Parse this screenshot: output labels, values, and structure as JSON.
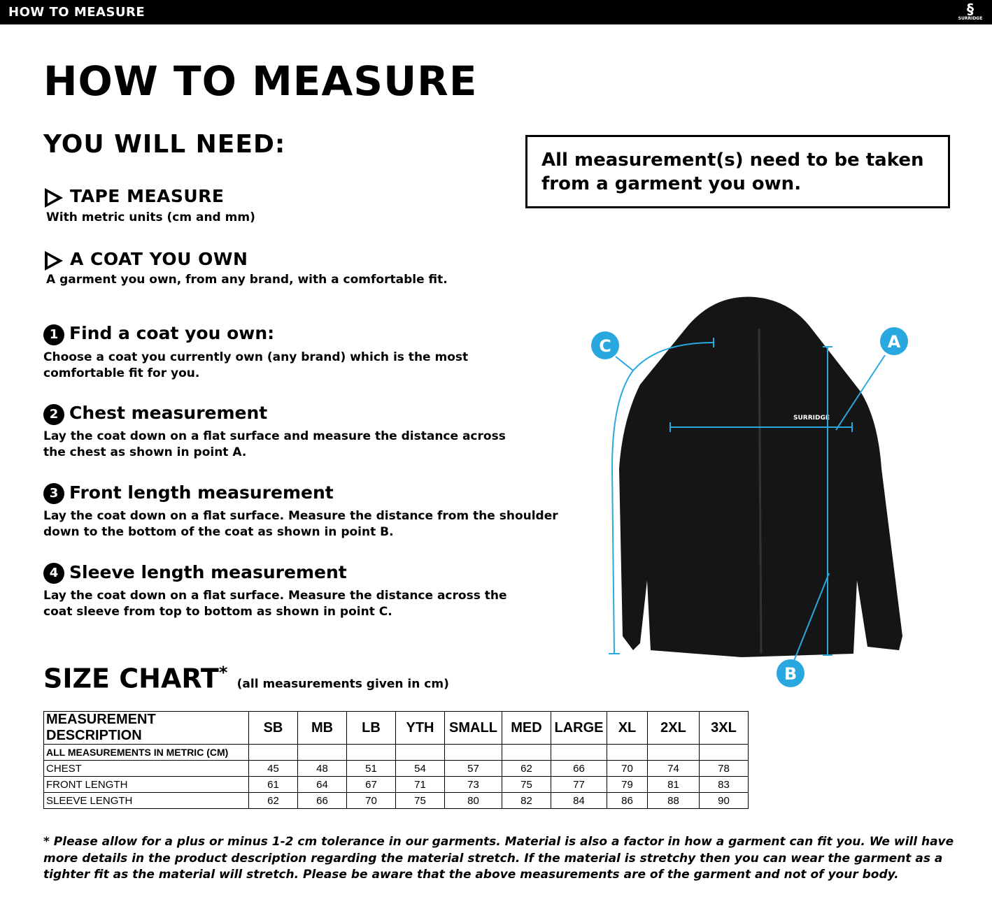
{
  "header": {
    "title": "HOW TO MEASURE",
    "logo_text": "SURRIDGE"
  },
  "page_title": "HOW TO MEASURE",
  "need": {
    "title": "YOU WILL NEED:",
    "items": [
      {
        "title": "TAPE MEASURE",
        "desc": "With metric units (cm and mm)"
      },
      {
        "title": "A COAT YOU OWN",
        "desc": "A garment you own, from any brand, with a comfortable fit."
      }
    ]
  },
  "notice": "All measurement(s) need to be taken from a garment you own.",
  "steps": [
    {
      "num": "1",
      "title": "Find a coat you own:",
      "desc": "Choose a coat you currently own (any brand) which is the most comfortable fit for you."
    },
    {
      "num": "2",
      "title": "Chest measurement",
      "desc": "Lay the coat down on a flat surface and measure the distance across the chest as shown in point A."
    },
    {
      "num": "3",
      "title": "Front length measurement",
      "desc": "Lay the coat down on a flat surface. Measure the distance from the shoulder down to the bottom of the coat as shown in point B."
    },
    {
      "num": "4",
      "title": "Sleeve length measurement",
      "desc": "Lay the coat down on a flat surface. Measure the distance across the coat sleeve from top to bottom as shown in point C."
    }
  ],
  "diagram": {
    "labels": [
      "A",
      "B",
      "C"
    ],
    "accent": "#29a8e0",
    "logo": "SURRIDGE"
  },
  "size_chart": {
    "title": "SIZE CHART",
    "asterisk": "*",
    "subtitle": "(all measurements given in cm)",
    "headers": [
      "MEASUREMENT DESCRIPTION",
      "SB",
      "MB",
      "LB",
      "YTH",
      "SMALL",
      "MED",
      "LARGE",
      "XL",
      "2XL",
      "3XL"
    ],
    "rows": [
      {
        "label": "ALL MEASUREMENTS IN METRIC (CM)",
        "values": [
          "",
          "",
          "",
          "",
          "",
          "",
          "",
          "",
          "",
          ""
        ]
      },
      {
        "label": "CHEST",
        "values": [
          "45",
          "48",
          "51",
          "54",
          "57",
          "62",
          "66",
          "70",
          "74",
          "78"
        ]
      },
      {
        "label": "FRONT LENGTH",
        "values": [
          "61",
          "64",
          "67",
          "71",
          "73",
          "75",
          "77",
          "79",
          "81",
          "83"
        ]
      },
      {
        "label": "SLEEVE LENGTH",
        "values": [
          "62",
          "66",
          "70",
          "75",
          "80",
          "82",
          "84",
          "86",
          "88",
          "90"
        ]
      }
    ]
  },
  "footnote": "* Please allow for a plus or minus 1-2 cm tolerance in our garments. Material is also a factor in how a garment can fit you. We will have more details in the product description regarding the material stretch.  If the material is stretchy then you can wear the garment as a tighter fit as the material will stretch.  Please be aware that the above measurements are of the garment and not of your body."
}
